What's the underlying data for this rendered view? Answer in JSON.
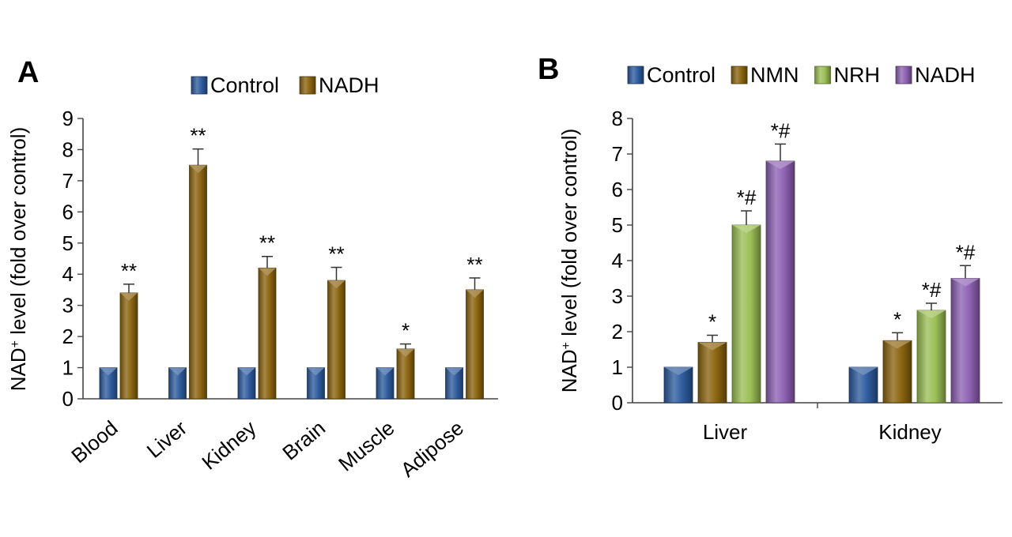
{
  "chart_data": [
    {
      "type": "bar",
      "panel_label": "A",
      "title": "",
      "ylabel_main": "NAD",
      "ylabel_sup": "+",
      "ylabel_rest": " level (fold over control)",
      "xlabel": "",
      "ylim": [
        0,
        9
      ],
      "yticks": [
        0,
        1,
        2,
        3,
        4,
        5,
        6,
        7,
        8,
        9
      ],
      "categories": [
        "Blood",
        "Liver",
        "Kidney",
        "Brain",
        "Muscle",
        "Adipose"
      ],
      "series": [
        {
          "name": "Control",
          "color": "#2E5C9E",
          "values": [
            1,
            1,
            1,
            1,
            1,
            1
          ],
          "errors": [
            0,
            0,
            0,
            0,
            0,
            0
          ]
        },
        {
          "name": "NADH",
          "color": "#8B6410",
          "values": [
            3.4,
            7.5,
            4.2,
            3.8,
            1.6,
            3.5
          ],
          "errors": [
            0.28,
            0.52,
            0.37,
            0.42,
            0.16,
            0.38
          ]
        }
      ],
      "annotations": [
        {
          "series": "NADH",
          "category": "Blood",
          "text": "**"
        },
        {
          "series": "NADH",
          "category": "Liver",
          "text": "**"
        },
        {
          "series": "NADH",
          "category": "Kidney",
          "text": "**"
        },
        {
          "series": "NADH",
          "category": "Brain",
          "text": "**"
        },
        {
          "series": "NADH",
          "category": "Muscle",
          "text": "*"
        },
        {
          "series": "NADH",
          "category": "Adipose",
          "text": "**"
        }
      ],
      "legend_position": "top"
    },
    {
      "type": "bar",
      "panel_label": "B",
      "title": "",
      "ylabel_main": "NAD",
      "ylabel_sup": "+",
      "ylabel_rest": " level (fold over control)",
      "xlabel": "",
      "ylim": [
        0,
        8
      ],
      "yticks": [
        0,
        1,
        2,
        3,
        4,
        5,
        6,
        7,
        8
      ],
      "categories": [
        "Liver",
        "Kidney"
      ],
      "series": [
        {
          "name": "Control",
          "color": "#2E5C9E",
          "values": [
            1,
            1
          ],
          "errors": [
            0,
            0
          ]
        },
        {
          "name": "NMN",
          "color": "#8B6410",
          "values": [
            1.7,
            1.75
          ],
          "errors": [
            0.2,
            0.22
          ]
        },
        {
          "name": "NRH",
          "color": "#9CBF56",
          "values": [
            5.0,
            2.6
          ],
          "errors": [
            0.4,
            0.2
          ]
        },
        {
          "name": "NADH",
          "color": "#8E62B3",
          "values": [
            6.8,
            3.5
          ],
          "errors": [
            0.48,
            0.36
          ]
        }
      ],
      "annotations": [
        {
          "series": "NMN",
          "category": "Liver",
          "text": "*"
        },
        {
          "series": "NRH",
          "category": "Liver",
          "text": "*#"
        },
        {
          "series": "NADH",
          "category": "Liver",
          "text": "*#"
        },
        {
          "series": "NMN",
          "category": "Kidney",
          "text": "*"
        },
        {
          "series": "NRH",
          "category": "Kidney",
          "text": "*#"
        },
        {
          "series": "NADH",
          "category": "Kidney",
          "text": "*#"
        }
      ],
      "legend_position": "top"
    }
  ]
}
